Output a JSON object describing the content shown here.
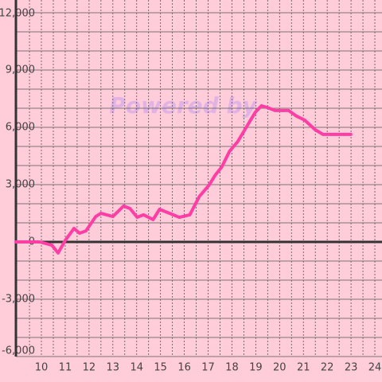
{
  "chart_data": {
    "type": "line",
    "watermark": "Powered by",
    "x": [
      8.93,
      9.93,
      10.44,
      10.7,
      11,
      11.37,
      11.6,
      11.87,
      12.28,
      12.5,
      13,
      13.45,
      13.72,
      14.02,
      14.29,
      14.69,
      14.96,
      15.46,
      15.79,
      16.23,
      16.63,
      17.03,
      17.3,
      17.57,
      17.9,
      18.24,
      18.64,
      18.98,
      19.24,
      19.48,
      19.81,
      20.38,
      20.72,
      21.05,
      21.49,
      21.82,
      22.32,
      22.99
    ],
    "series": [
      {
        "color": "#ff3ea5",
        "values": [
          0,
          0,
          -170,
          -580,
          80,
          710,
          460,
          580,
          1330,
          1500,
          1330,
          1880,
          1750,
          1290,
          1420,
          1170,
          1710,
          1460,
          1290,
          1420,
          2380,
          2960,
          3500,
          3920,
          4750,
          5250,
          6080,
          6790,
          7130,
          7040,
          6880,
          6880,
          6580,
          6380,
          5880,
          5630,
          5630,
          5630
        ]
      }
    ],
    "xlim": [
      8.93,
      24.3
    ],
    "xticks": [
      10,
      11,
      12,
      13,
      14,
      15,
      16,
      17,
      18,
      19,
      20,
      21,
      22,
      23,
      24
    ],
    "xminorticks": [
      9.5,
      10.5,
      11.5,
      12.5,
      13.5,
      14.5,
      15.5,
      16.5,
      17.5,
      18.5,
      19.5,
      20.5,
      21.5,
      22.5,
      23.5
    ],
    "ylim": [
      -6000,
      12000
    ],
    "yticks": [
      {
        "value": -6000,
        "label": "-6,000"
      },
      {
        "value": -3000,
        "label": "-3,000"
      },
      0,
      {
        "value": 3000,
        "label": "3,000"
      },
      {
        "value": 6000,
        "label": "6,000"
      },
      {
        "value": 9000,
        "label": "9,000"
      },
      {
        "value": 12000,
        "label": "12,000"
      }
    ],
    "yminorticks": [
      -5000,
      -4000,
      -2000,
      -1000,
      1000,
      2000,
      4000,
      5000,
      7000,
      8000,
      10000,
      11000
    ],
    "grid": true
  }
}
